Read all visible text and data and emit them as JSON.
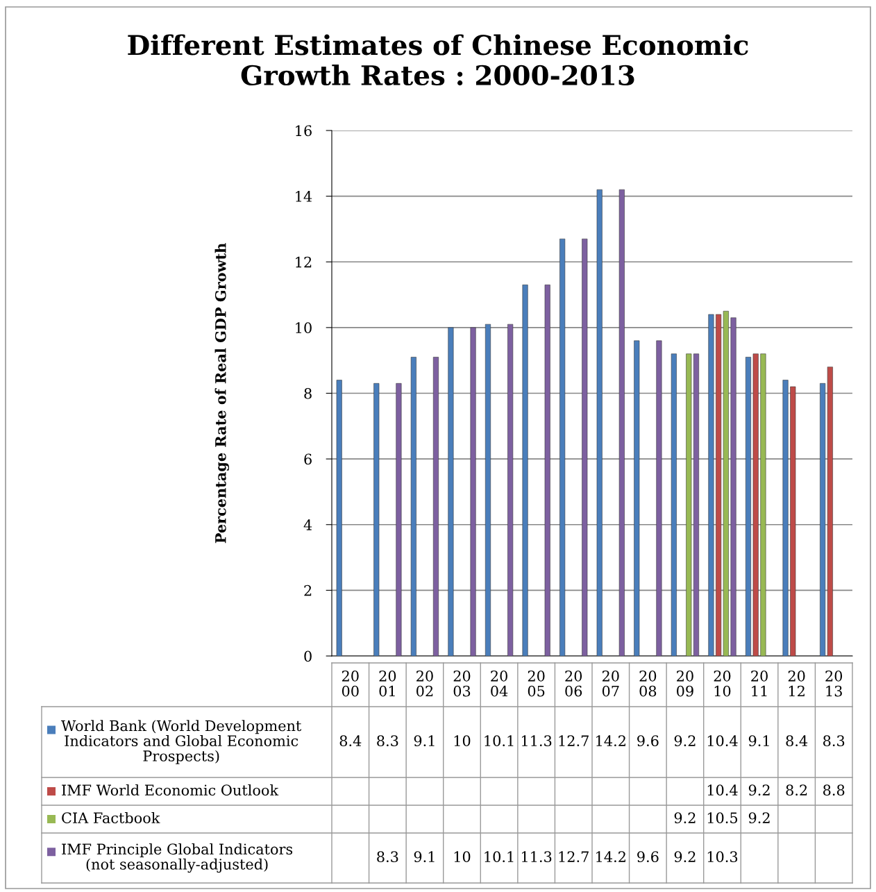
{
  "chart_data": {
    "type": "bar",
    "title": "Different Estimates of Chinese Economic\nGrowth Rates : 2000-2013",
    "ylabel": "Percentage Rate of Real GDP Growth",
    "categories": [
      "20\n00",
      "20\n01",
      "20\n02",
      "20\n03",
      "20\n04",
      "20\n05",
      "20\n06",
      "20\n07",
      "20\n08",
      "20\n09",
      "20\n10",
      "20\n11",
      "20\n12",
      "20\n13"
    ],
    "series": [
      {
        "name": "World Bank (World Development\nIndicators and Global Economic\nProspects)",
        "color": "#4a7ebb",
        "values": [
          8.4,
          8.3,
          9.1,
          10,
          10.1,
          11.3,
          12.7,
          14.2,
          9.6,
          9.2,
          10.4,
          9.1,
          8.4,
          8.3
        ]
      },
      {
        "name": "IMF World Economic Outlook",
        "color": "#be4b48",
        "values": [
          null,
          null,
          null,
          null,
          null,
          null,
          null,
          null,
          null,
          null,
          10.4,
          9.2,
          8.2,
          8.8
        ]
      },
      {
        "name": "CIA Factbook",
        "color": "#98b954",
        "values": [
          null,
          null,
          null,
          null,
          null,
          null,
          null,
          null,
          null,
          9.2,
          10.5,
          9.2,
          null,
          null
        ]
      },
      {
        "name": "IMF Principle Global Indicators\n(not seasonally-adjusted)",
        "color": "#7d60a0",
        "values": [
          null,
          8.3,
          9.1,
          10,
          10.1,
          11.3,
          12.7,
          14.2,
          9.6,
          9.2,
          10.3,
          null,
          null,
          null
        ]
      }
    ],
    "ylim": [
      0,
      16
    ],
    "yticks": [
      0,
      2,
      4,
      6,
      8,
      10,
      12,
      14,
      16
    ],
    "grid": "y",
    "legend": "bottom",
    "data_labels": true
  }
}
